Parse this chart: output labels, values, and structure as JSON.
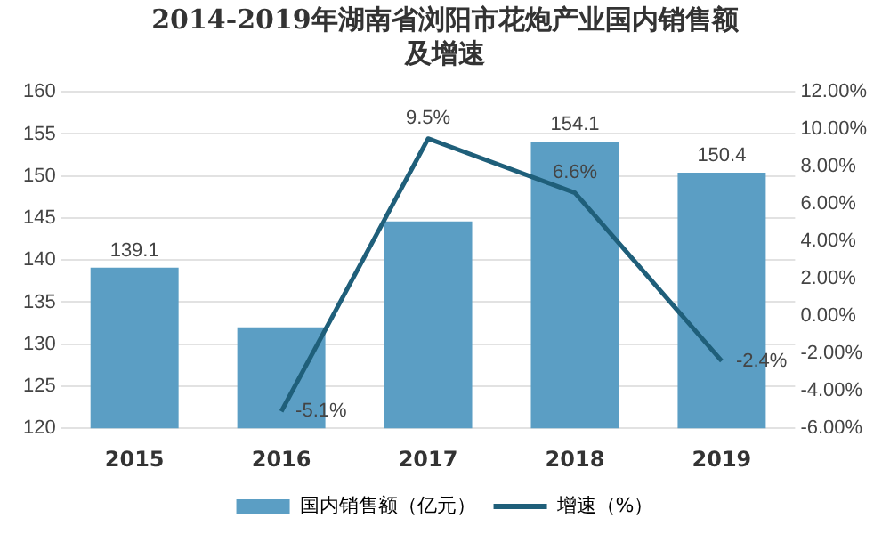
{
  "chart_data": {
    "type": "bar",
    "title": "2014-2019年湖南省浏阳市花炮产业国内销售额及增速",
    "categories": [
      "2015",
      "2016",
      "2017",
      "2018",
      "2019"
    ],
    "series": [
      {
        "name": "国内销售额（亿元）",
        "color": "#5b9ec4",
        "values": [
          139.1,
          132.0,
          144.6,
          154.1,
          150.4
        ],
        "value_labels": [
          "139.1",
          null,
          null,
          "154.1",
          "150.4"
        ]
      },
      {
        "name": "增速（%）",
        "type": "line",
        "axis": "y2",
        "color": "#1f5f7a",
        "values": [
          null,
          -5.1,
          9.5,
          6.6,
          -2.4
        ],
        "value_labels": [
          null,
          "-5.1%",
          "9.5%",
          "6.6%",
          "-2.4%"
        ]
      }
    ],
    "ylim": [
      120,
      160
    ],
    "yticks": [
      120,
      125,
      130,
      135,
      140,
      145,
      150,
      155,
      160
    ],
    "y2lim": [
      -6,
      12
    ],
    "y2ticks": [
      {
        "value": -6,
        "label": "-6.00%"
      },
      {
        "value": -4,
        "label": "-4.00%"
      },
      {
        "value": -2,
        "label": "-2.00%"
      },
      {
        "value": 0,
        "label": "0.00%"
      },
      {
        "value": 2,
        "label": "2.00%"
      },
      {
        "value": 4,
        "label": "4.00%"
      },
      {
        "value": 6,
        "label": "6.00%"
      },
      {
        "value": 8,
        "label": "8.00%"
      },
      {
        "value": 10,
        "label": "10.00%"
      },
      {
        "value": 12,
        "label": "12.00%"
      }
    ],
    "grid": "y",
    "legend": "bottom",
    "marker": "none"
  }
}
